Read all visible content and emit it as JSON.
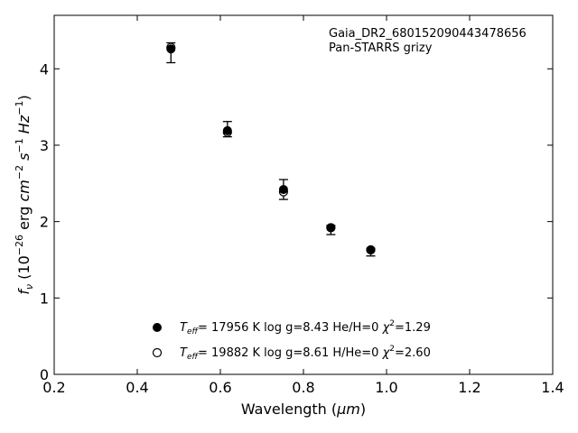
{
  "chart_data": {
    "type": "scatter",
    "title": "",
    "xlabel": "Wavelength (μm)",
    "ylabel": "f_ν (10^-26 erg cm^-2 s^-1 Hz^-1)",
    "xlim": [
      0.2,
      1.4
    ],
    "ylim": [
      0,
      4.7
    ],
    "x_ticks": [
      0.2,
      0.4,
      0.6,
      0.8,
      1.0,
      1.2,
      1.4
    ],
    "x_tick_labels": [
      "0.2",
      "0.4",
      "0.6",
      "0.8",
      "1.0",
      "1.2",
      "1.4"
    ],
    "y_ticks": [
      0,
      1,
      2,
      3,
      4
    ],
    "y_tick_labels": [
      "0",
      "1",
      "2",
      "3",
      "4"
    ],
    "grid": false,
    "annotations": [
      "Gaia_DR2_680152090443478656",
      "Pan-STARRS grizy"
    ],
    "observed": {
      "x": [
        0.481,
        0.617,
        0.752,
        0.866,
        0.962
      ],
      "y": [
        4.21,
        3.21,
        2.42,
        1.89,
        1.6
      ],
      "yerr": [
        0.13,
        0.1,
        0.13,
        0.06,
        0.05
      ]
    },
    "series": [
      {
        "name": "T_eff= 17956 K  log g=8.43  He/H=0  χ²=1.29",
        "marker": "filled",
        "x": [
          0.481,
          0.617,
          0.752,
          0.866,
          0.962
        ],
        "y": [
          4.26,
          3.19,
          2.42,
          1.92,
          1.63
        ]
      },
      {
        "name": "T_eff= 19882 K  log g=8.61  H/He=0  χ²=2.60",
        "marker": "open",
        "x": [
          0.481,
          0.617,
          0.752,
          0.866,
          0.962
        ],
        "y": [
          4.28,
          3.17,
          2.39,
          1.92,
          1.63
        ]
      }
    ],
    "legend_placement": "bottom-center",
    "colors": {
      "marker": "#000000",
      "axes": "#000000",
      "background": "#ffffff"
    }
  },
  "labels": {
    "xlabel_text": "Wavelength (",
    "xlabel_unit": "μm",
    "xlabel_close": ")",
    "ylabel_f": "f",
    "ylabel_nu": "ν",
    "ylabel_rest1": " (10",
    "ylabel_exp1": "−26",
    "ylabel_rest2": " erg ",
    "ylabel_cm": "cm",
    "ylabel_exp2": "−2",
    "ylabel_s": " s",
    "ylabel_exp3": "−1",
    "ylabel_hz": " Hz",
    "ylabel_exp4": "−1",
    "ylabel_close": ")",
    "legend1_T": "T",
    "legend1_sub": "eff",
    "legend1_rest": "= 17956 K  log g=8.43  He/H=0  ",
    "legend1_chi": "χ",
    "legend1_sup": "2",
    "legend1_val": "=1.29",
    "legend2_T": "T",
    "legend2_sub": "eff",
    "legend2_rest": "= 19882 K  log g=8.61  H/He=0  ",
    "legend2_chi": "χ",
    "legend2_sup": "2",
    "legend2_val": "=2.60"
  }
}
